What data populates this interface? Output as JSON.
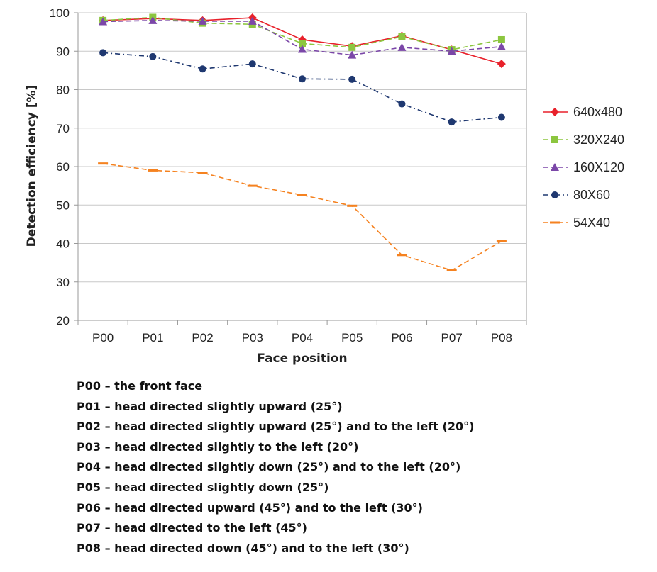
{
  "chart_data": {
    "type": "line",
    "xlabel": "Face position",
    "ylabel": "Detection efficiency [%]",
    "ylim": [
      20,
      100
    ],
    "yticks": [
      20,
      30,
      40,
      50,
      60,
      70,
      80,
      90,
      100
    ],
    "grid": "horizontal",
    "legend_position": "right",
    "categories": [
      "P00",
      "P01",
      "P02",
      "P03",
      "P04",
      "P05",
      "P06",
      "P07",
      "P08"
    ],
    "series": [
      {
        "name": "640x480",
        "color": "#e8212b",
        "marker": "diamond",
        "dash": "solid",
        "values": [
          98,
          98.5,
          98,
          98.7,
          93,
          91.3,
          94,
          90.4,
          86.7
        ]
      },
      {
        "name": "320X240",
        "color": "#8cc63f",
        "marker": "square",
        "dash": "dashed",
        "values": [
          98,
          98.8,
          97.3,
          97,
          92,
          91,
          93.8,
          90.4,
          93
        ]
      },
      {
        "name": "160X120",
        "color": "#7b47a8",
        "marker": "triangle",
        "dash": "dashed",
        "values": [
          97.7,
          98,
          97.8,
          97.8,
          90.5,
          89,
          91,
          90,
          91.2
        ]
      },
      {
        "name": "80X60",
        "color": "#1f3870",
        "marker": "circle",
        "dash": "dash-dot",
        "values": [
          89.6,
          88.6,
          85.4,
          86.7,
          82.8,
          82.7,
          76.3,
          71.6,
          72.8
        ]
      },
      {
        "name": "54X40",
        "color": "#f58220",
        "marker": "dash",
        "dash": "dashed",
        "values": [
          60.8,
          59,
          58.4,
          55,
          52.6,
          49.8,
          37,
          33,
          40.6
        ]
      }
    ]
  },
  "notes": [
    "P00 – the front face",
    "P01 – head directed slightly upward (25°)",
    "P02 – head directed slightly upward (25°) and to the left (20°)",
    "P03 – head directed slightly to the left (20°)",
    "P04 – head directed slightly down (25°) and to the left (20°)",
    "P05 – head directed slightly down (25°)",
    "P06 – head directed upward (45°) and to the left (30°)",
    "P07 – head directed to the left (45°)",
    "P08 – head directed down (45°) and to the left (30°)"
  ]
}
